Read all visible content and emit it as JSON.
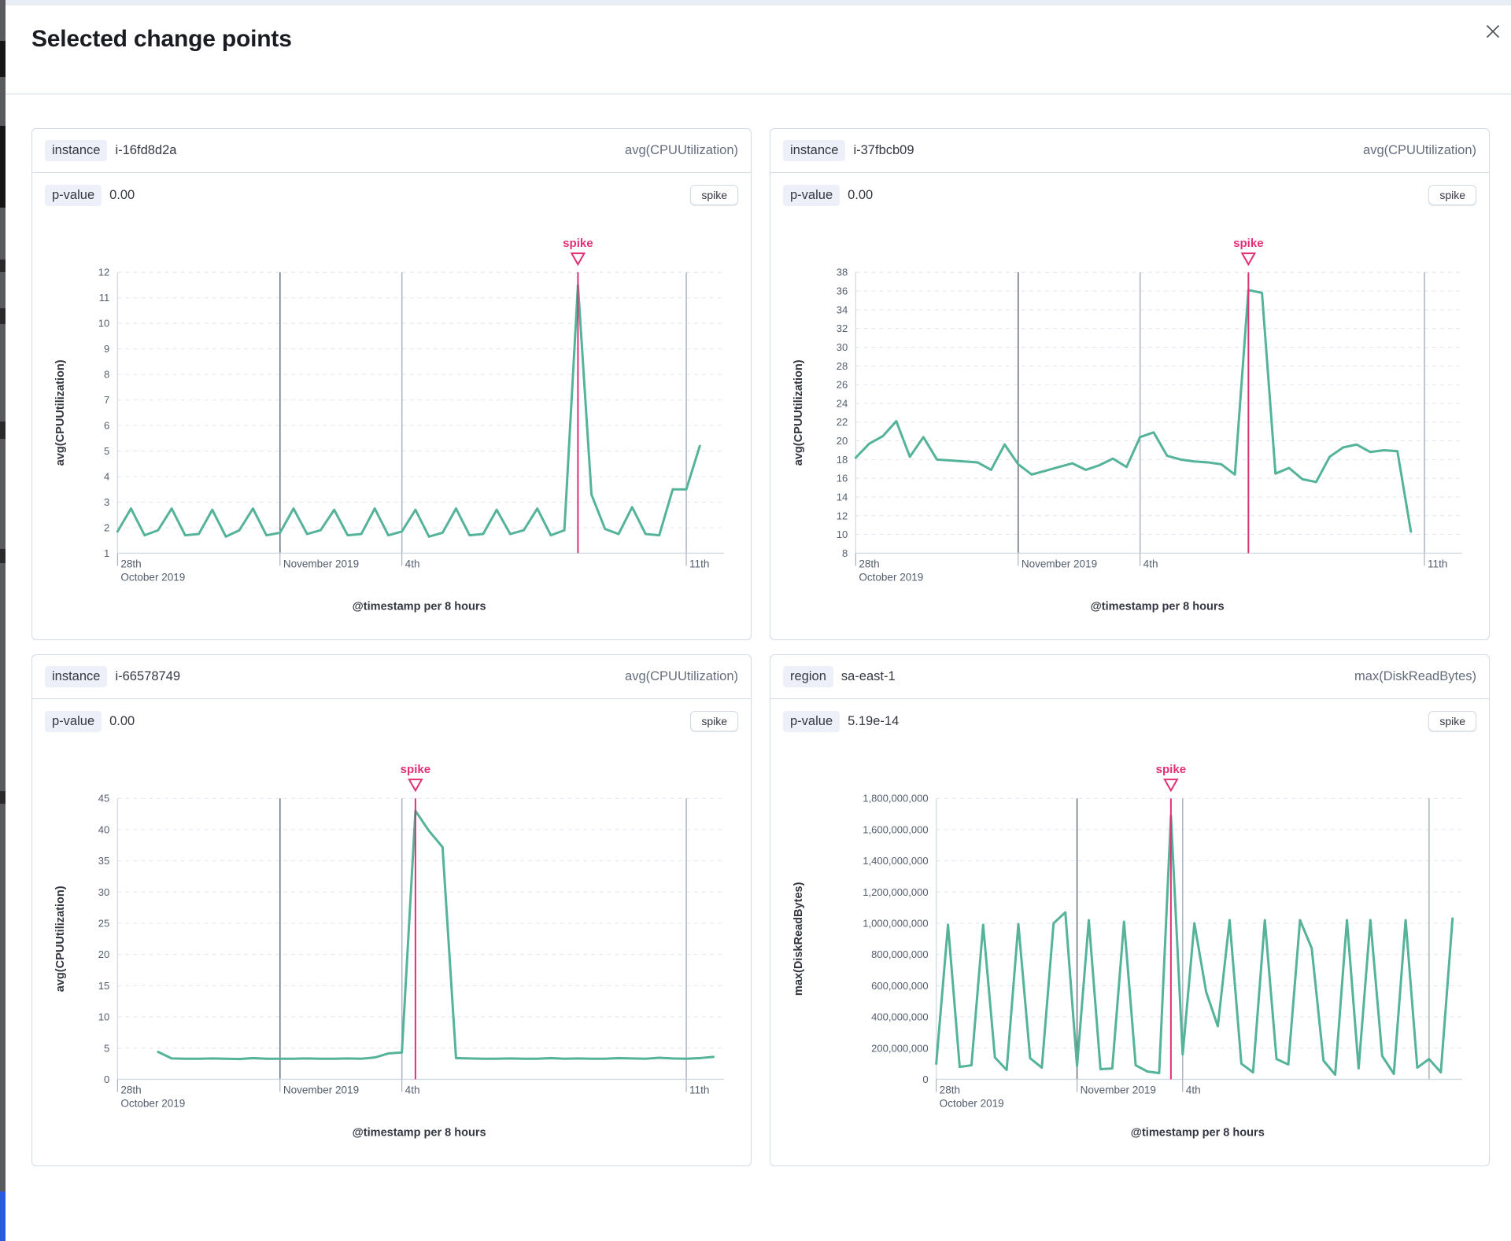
{
  "page": {
    "title": "Selected change points"
  },
  "colors": {
    "line": "#54B399",
    "spike_accent": "#E23077",
    "card_border": "#D3DAE6",
    "badge_bg": "#EDF0F9",
    "text": "#343741",
    "metric_text": "#646D7C",
    "grid_dash": "#DFE5EF",
    "axis_line": "#D3DAE6",
    "month_gridline": "#69707D",
    "day_gridline": "#ABB3BF",
    "tick_text": "#535D6C"
  },
  "panels": [
    {
      "field_label": "instance",
      "field_value": "i-16fd8d2a",
      "metric": "avg(CPUUtilization)",
      "p_label": "p-value",
      "p_value": "0.00",
      "change_type": "spike",
      "chart_data": {
        "type": "line",
        "ylabel": "avg(CPUUtilization)",
        "xlabel": "@timestamp per 8 hours",
        "ylim": [
          1,
          12
        ],
        "ytick_step": 1,
        "x_start": "2019-10-28 00:00",
        "bucket_hours": 8,
        "x_ticks": [
          {
            "day": 0,
            "label": "28th",
            "sublabel": "October 2019"
          },
          {
            "day": 4,
            "label": "November 2019"
          },
          {
            "day": 7,
            "label": "4th"
          },
          {
            "day": 14,
            "label": "11th"
          }
        ],
        "gridline_days": [
          4,
          7,
          14
        ],
        "start_bucket": 0,
        "values": [
          1.85,
          2.75,
          1.7,
          1.9,
          2.75,
          1.7,
          1.75,
          2.7,
          1.65,
          1.9,
          2.75,
          1.7,
          1.8,
          2.75,
          1.75,
          1.9,
          2.7,
          1.7,
          1.75,
          2.75,
          1.7,
          1.85,
          2.7,
          1.65,
          1.8,
          2.75,
          1.7,
          1.75,
          2.7,
          1.75,
          1.9,
          2.75,
          1.7,
          1.9,
          11.5,
          3.3,
          1.95,
          1.75,
          2.8,
          1.75,
          1.7,
          3.5,
          3.5,
          5.2
        ],
        "spike_bucket": 34,
        "annotation": "spike"
      }
    },
    {
      "field_label": "instance",
      "field_value": "i-37fbcb09",
      "metric": "avg(CPUUtilization)",
      "p_label": "p-value",
      "p_value": "0.00",
      "change_type": "spike",
      "chart_data": {
        "type": "line",
        "ylabel": "avg(CPUUtilization)",
        "xlabel": "@timestamp per 8 hours",
        "ylim": [
          8,
          38
        ],
        "ytick_step": 2,
        "x_start": "2019-10-28 00:00",
        "bucket_hours": 8,
        "x_ticks": [
          {
            "day": 0,
            "label": "28th",
            "sublabel": "October 2019"
          },
          {
            "day": 4,
            "label": "November 2019"
          },
          {
            "day": 7,
            "label": "4th"
          },
          {
            "day": 14,
            "label": "11th"
          }
        ],
        "gridline_days": [
          4,
          7,
          14
        ],
        "start_bucket": 0,
        "values": [
          18.2,
          19.7,
          20.5,
          22.1,
          18.3,
          20.4,
          18.0,
          17.9,
          17.8,
          17.7,
          16.9,
          19.6,
          17.5,
          16.4,
          16.8,
          17.2,
          17.6,
          16.9,
          17.4,
          18.1,
          17.2,
          20.4,
          20.9,
          18.4,
          18.0,
          17.8,
          17.7,
          17.5,
          16.4,
          36.1,
          35.8,
          16.5,
          17.1,
          15.9,
          15.6,
          18.3,
          19.3,
          19.6,
          18.8,
          19.0,
          18.9,
          10.3
        ],
        "spike_bucket": 29,
        "annotation": "spike"
      }
    },
    {
      "field_label": "instance",
      "field_value": "i-66578749",
      "metric": "avg(CPUUtilization)",
      "p_label": "p-value",
      "p_value": "0.00",
      "change_type": "spike",
      "chart_data": {
        "type": "line",
        "ylabel": "avg(CPUUtilization)",
        "xlabel": "@timestamp per 8 hours",
        "ylim": [
          0,
          45
        ],
        "ytick_step": 5,
        "x_start": "2019-10-28 00:00",
        "bucket_hours": 8,
        "x_ticks": [
          {
            "day": 0,
            "label": "28th",
            "sublabel": "October 2019"
          },
          {
            "day": 4,
            "label": "November 2019"
          },
          {
            "day": 7,
            "label": "4th"
          },
          {
            "day": 14,
            "label": "11th"
          }
        ],
        "gridline_days": [
          4,
          7,
          14
        ],
        "start_bucket": 3,
        "values": [
          4.4,
          3.35,
          3.3,
          3.3,
          3.35,
          3.3,
          3.25,
          3.4,
          3.3,
          3.3,
          3.3,
          3.35,
          3.3,
          3.3,
          3.35,
          3.3,
          3.5,
          4.15,
          4.3,
          43.0,
          39.8,
          37.2,
          3.4,
          3.35,
          3.3,
          3.3,
          3.35,
          3.3,
          3.3,
          3.4,
          3.3,
          3.35,
          3.3,
          3.3,
          3.4,
          3.35,
          3.3,
          3.45,
          3.35,
          3.3,
          3.4,
          3.6
        ],
        "spike_bucket": 22,
        "annotation": "spike"
      }
    },
    {
      "field_label": "region",
      "field_value": "sa-east-1",
      "metric": "max(DiskReadBytes)",
      "p_label": "p-value",
      "p_value": "5.19e-14",
      "change_type": "spike",
      "chart_data": {
        "type": "line",
        "ylabel": "max(DiskReadBytes)",
        "xlabel": "@timestamp per 8 hours",
        "ylim": [
          0,
          1800000000
        ],
        "ytick_step": 200000000,
        "x_start": "2019-10-28 00:00",
        "bucket_hours": 8,
        "x_ticks": [
          {
            "day": 0,
            "label": "28th",
            "sublabel": "October 2019"
          },
          {
            "day": 4,
            "label": "November 2019"
          },
          {
            "day": 7,
            "label": "4th"
          }
        ],
        "gridline_days": [
          4,
          7,
          14
        ],
        "start_bucket": 0,
        "values": [
          100000000,
          990000000,
          80000000,
          90000000,
          990000000,
          140000000,
          60000000,
          995000000,
          135000000,
          75000000,
          1000000000,
          1070000000,
          85000000,
          1020000000,
          65000000,
          70000000,
          1010000000,
          90000000,
          50000000,
          40000000,
          1690000000,
          160000000,
          1000000000,
          560000000,
          340000000,
          1020000000,
          100000000,
          45000000,
          1020000000,
          130000000,
          95000000,
          1020000000,
          840000000,
          120000000,
          30000000,
          1020000000,
          70000000,
          1020000000,
          150000000,
          35000000,
          1020000000,
          75000000,
          130000000,
          45000000,
          1030000000
        ],
        "spike_bucket": 20,
        "annotation": "spike"
      }
    }
  ]
}
